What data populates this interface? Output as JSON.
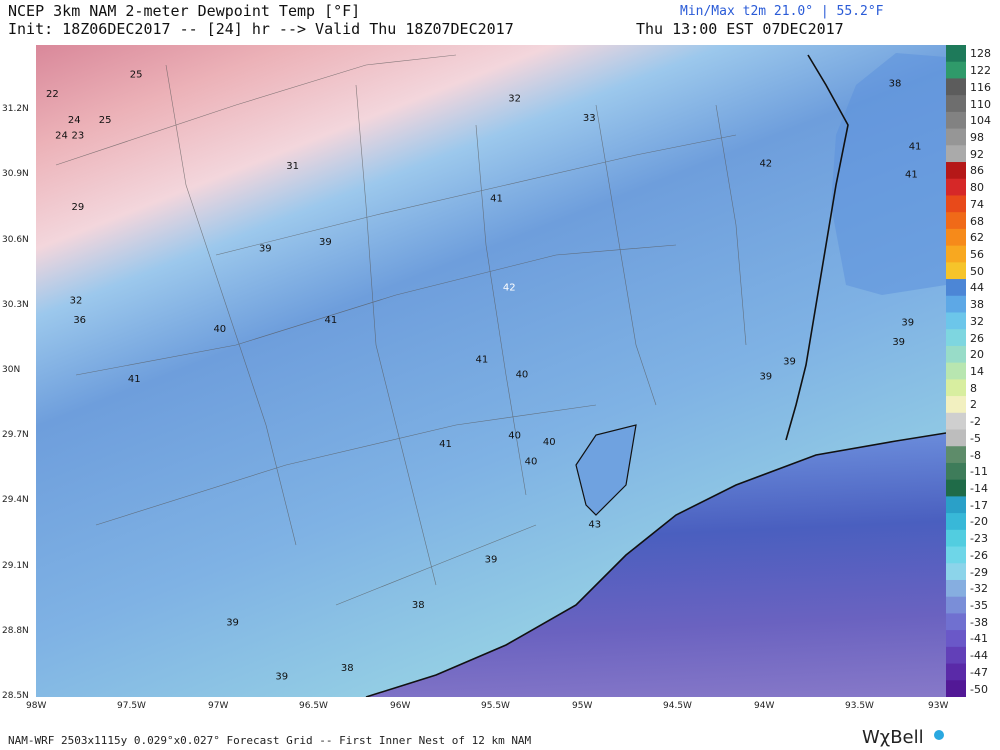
{
  "header": {
    "title": "NCEP 3km NAM 2-meter Dewpoint Temp [°F]",
    "init_line": "Init: 18Z06DEC2017 -- [24] hr --> Valid Thu 18Z07DEC2017",
    "minmax": "Min/Max t2m 21.0° | 55.2°F",
    "local_time": "Thu 13:00 EST 07DEC2017"
  },
  "axes": {
    "lat_labels": [
      "31.2N",
      "30.9N",
      "30.6N",
      "30.3N",
      "30N",
      "29.7N",
      "29.4N",
      "29.1N",
      "28.8N",
      "28.5N"
    ],
    "lon_labels": [
      "98W",
      "97.5W",
      "97W",
      "96.5W",
      "96W",
      "95.5W",
      "95W",
      "94.5W",
      "94W",
      "93.5W",
      "93W"
    ]
  },
  "colorbar": {
    "labels": [
      "128",
      "122",
      "116",
      "110",
      "104",
      "98",
      "92",
      "86",
      "80",
      "74",
      "68",
      "62",
      "56",
      "50",
      "44",
      "38",
      "32",
      "26",
      "20",
      "14",
      "8",
      "2",
      "-2",
      "-5",
      "-8",
      "-11",
      "-14",
      "-17",
      "-20",
      "-23",
      "-26",
      "-29",
      "-32",
      "-35",
      "-38",
      "-41",
      "-44",
      "-47",
      "-50"
    ],
    "colors": [
      "#1e7a5a",
      "#2f9a6a",
      "#5c5c5c",
      "#6e6e6e",
      "#828282",
      "#969696",
      "#aaaaaa",
      "#b51818",
      "#d62828",
      "#e84a1a",
      "#f06a18",
      "#f68a1a",
      "#f8a820",
      "#f6c42a",
      "#4c86d6",
      "#5da8e6",
      "#6cc6ea",
      "#7ed6e0",
      "#98dcc8",
      "#b8e6b0",
      "#d8eea0",
      "#f2f0c0",
      "#cfcfcf",
      "#bdbdbd",
      "#5e8c6a",
      "#3e7c5a",
      "#1f6b48",
      "#2aa0c8",
      "#38b8d8",
      "#52cde0",
      "#6ed6e8",
      "#8cd4ea",
      "#86aee0",
      "#7a8ed8",
      "#7070d0",
      "#6a58c8",
      "#6240b8",
      "#5a2aa8",
      "#521896"
    ]
  },
  "map_labels": [
    {
      "text": "25",
      "lon": -97.45,
      "lat": 31.35
    },
    {
      "text": "22",
      "lon": -97.91,
      "lat": 31.26
    },
    {
      "text": "24",
      "lon": -97.79,
      "lat": 31.14
    },
    {
      "text": "25",
      "lon": -97.62,
      "lat": 31.14
    },
    {
      "text": "24",
      "lon": -97.86,
      "lat": 31.07
    },
    {
      "text": "23",
      "lon": -97.77,
      "lat": 31.07
    },
    {
      "text": "32",
      "lon": -95.37,
      "lat": 31.24
    },
    {
      "text": "33",
      "lon": -94.96,
      "lat": 31.15
    },
    {
      "text": "38",
      "lon": -93.28,
      "lat": 31.31
    },
    {
      "text": "41",
      "lon": -93.17,
      "lat": 31.02
    },
    {
      "text": "41",
      "lon": -93.19,
      "lat": 30.89
    },
    {
      "text": "42",
      "lon": -93.99,
      "lat": 30.94
    },
    {
      "text": "31",
      "lon": -96.59,
      "lat": 30.93
    },
    {
      "text": "29",
      "lon": -97.77,
      "lat": 30.74
    },
    {
      "text": "41",
      "lon": -95.47,
      "lat": 30.78
    },
    {
      "text": "39",
      "lon": -96.74,
      "lat": 30.55
    },
    {
      "text": "39",
      "lon": -96.41,
      "lat": 30.58
    },
    {
      "text": "42",
      "lon": -95.4,
      "lat": 30.37
    },
    {
      "text": "32",
      "lon": -97.78,
      "lat": 30.31
    },
    {
      "text": "36",
      "lon": -97.76,
      "lat": 30.22
    },
    {
      "text": "41",
      "lon": -96.38,
      "lat": 30.22
    },
    {
      "text": "40",
      "lon": -96.99,
      "lat": 30.18
    },
    {
      "text": "39",
      "lon": -93.21,
      "lat": 30.21
    },
    {
      "text": "39",
      "lon": -93.26,
      "lat": 30.12
    },
    {
      "text": "41",
      "lon": -95.55,
      "lat": 30.04
    },
    {
      "text": "40",
      "lon": -95.33,
      "lat": 29.97
    },
    {
      "text": "39",
      "lon": -93.86,
      "lat": 30.03
    },
    {
      "text": "39",
      "lon": -93.99,
      "lat": 29.96
    },
    {
      "text": "41",
      "lon": -97.46,
      "lat": 29.95
    },
    {
      "text": "40",
      "lon": -98.05,
      "lat": 29.94
    },
    {
      "text": "41",
      "lon": -95.75,
      "lat": 29.65
    },
    {
      "text": "40",
      "lon": -95.37,
      "lat": 29.69
    },
    {
      "text": "40",
      "lon": -95.18,
      "lat": 29.66
    },
    {
      "text": "40",
      "lon": -95.28,
      "lat": 29.57
    },
    {
      "text": "43",
      "lon": -94.93,
      "lat": 29.28
    },
    {
      "text": "39",
      "lon": -95.5,
      "lat": 29.12
    },
    {
      "text": "38",
      "lon": -95.9,
      "lat": 28.91
    },
    {
      "text": "39",
      "lon": -96.92,
      "lat": 28.83
    },
    {
      "text": "38",
      "lon": -96.29,
      "lat": 28.62
    },
    {
      "text": "39",
      "lon": -96.65,
      "lat": 28.58
    }
  ],
  "footer": {
    "grid_info": "NAM-WRF 2503x1115y 0.029°x0.027° Forecast Grid -- First Inner Nest of 12 km NAM",
    "brand": "WχBell"
  }
}
